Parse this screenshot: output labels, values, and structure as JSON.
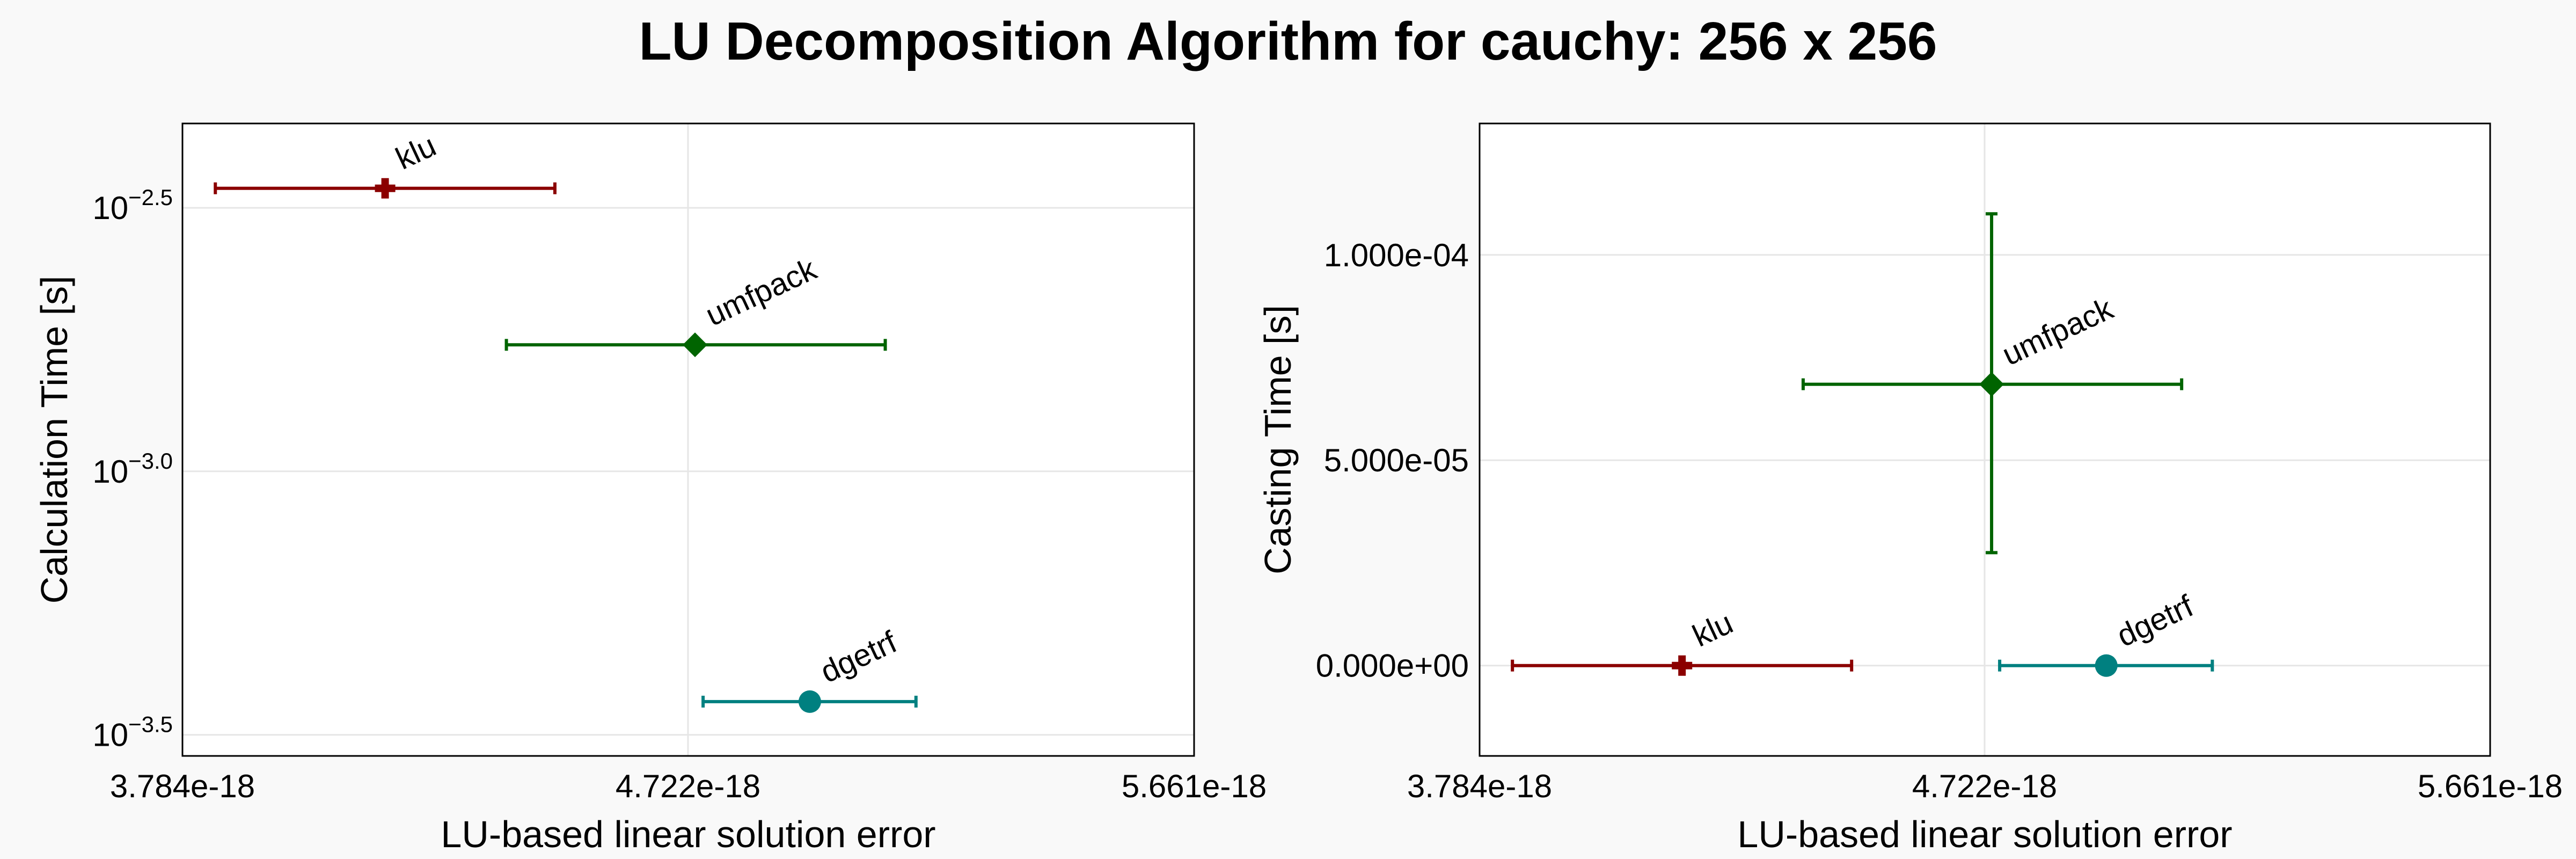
{
  "title": "LU Decomposition Algorithm for cauchy: 256 x 256",
  "chart_data": [
    {
      "type": "scatter",
      "xlabel": "LU-based linear solution error",
      "ylabel": "Calculation Time [s]",
      "xscale": "linear",
      "yscale": "log10",
      "xlim": [
        3.784e-18,
        5.661e-18
      ],
      "ylim": [
        -3.54,
        -2.34
      ],
      "xticks": [
        {
          "value": 3.784e-18,
          "label": "3.784e-18"
        },
        {
          "value": 4.722e-18,
          "label": "4.722e-18"
        },
        {
          "value": 5.661e-18,
          "label": "5.661e-18"
        }
      ],
      "yticks": [
        {
          "value": -2.5,
          "base": "10",
          "exp": "−2.5"
        },
        {
          "value": -3.0,
          "base": "10",
          "exp": "−3.0"
        },
        {
          "value": -3.5,
          "base": "10",
          "exp": "−3.5"
        }
      ],
      "grid": true,
      "points": [
        {
          "label": "klu",
          "x": 4.16e-18,
          "y": -2.463,
          "xerr": [
            3.845e-18,
            4.475e-18
          ],
          "yerr": null,
          "marker": "cross",
          "color": "#8b0000"
        },
        {
          "label": "umfpack",
          "x": 4.735e-18,
          "y": -2.76,
          "xerr": [
            4.385e-18,
            5.088e-18
          ],
          "yerr": null,
          "marker": "diamond",
          "color": "#006400"
        },
        {
          "label": "dgetrf",
          "x": 4.948e-18,
          "y": -3.437,
          "xerr": [
            4.75e-18,
            5.145e-18
          ],
          "yerr": null,
          "marker": "circle",
          "color": "#008080"
        }
      ]
    },
    {
      "type": "scatter",
      "xlabel": "LU-based linear solution error",
      "ylabel": "Casting Time [s]",
      "xscale": "linear",
      "yscale": "linear",
      "xlim": [
        3.784e-18,
        5.661e-18
      ],
      "ylim": [
        -2.2e-05,
        0.000132
      ],
      "xticks": [
        {
          "value": 3.784e-18,
          "label": "3.784e-18"
        },
        {
          "value": 4.722e-18,
          "label": "4.722e-18"
        },
        {
          "value": 5.661e-18,
          "label": "5.661e-18"
        }
      ],
      "yticks": [
        {
          "value": 0,
          "label": "0.000e+00"
        },
        {
          "value": 5e-05,
          "label": "5.000e-05"
        },
        {
          "value": 0.0001,
          "label": "1.000e-04"
        }
      ],
      "grid": true,
      "points": [
        {
          "label": "klu",
          "x": 4.16e-18,
          "y": 0,
          "xerr": [
            3.845e-18,
            4.475e-18
          ],
          "yerr": null,
          "marker": "cross",
          "color": "#8b0000"
        },
        {
          "label": "umfpack",
          "x": 4.735e-18,
          "y": 6.85e-05,
          "xerr": [
            4.385e-18,
            5.088e-18
          ],
          "yerr": [
            2.75e-05,
            0.00011
          ],
          "marker": "diamond",
          "color": "#006400"
        },
        {
          "label": "dgetrf",
          "x": 4.948e-18,
          "y": 0,
          "xerr": [
            4.75e-18,
            5.145e-18
          ],
          "yerr": null,
          "marker": "circle",
          "color": "#008080"
        }
      ]
    }
  ]
}
